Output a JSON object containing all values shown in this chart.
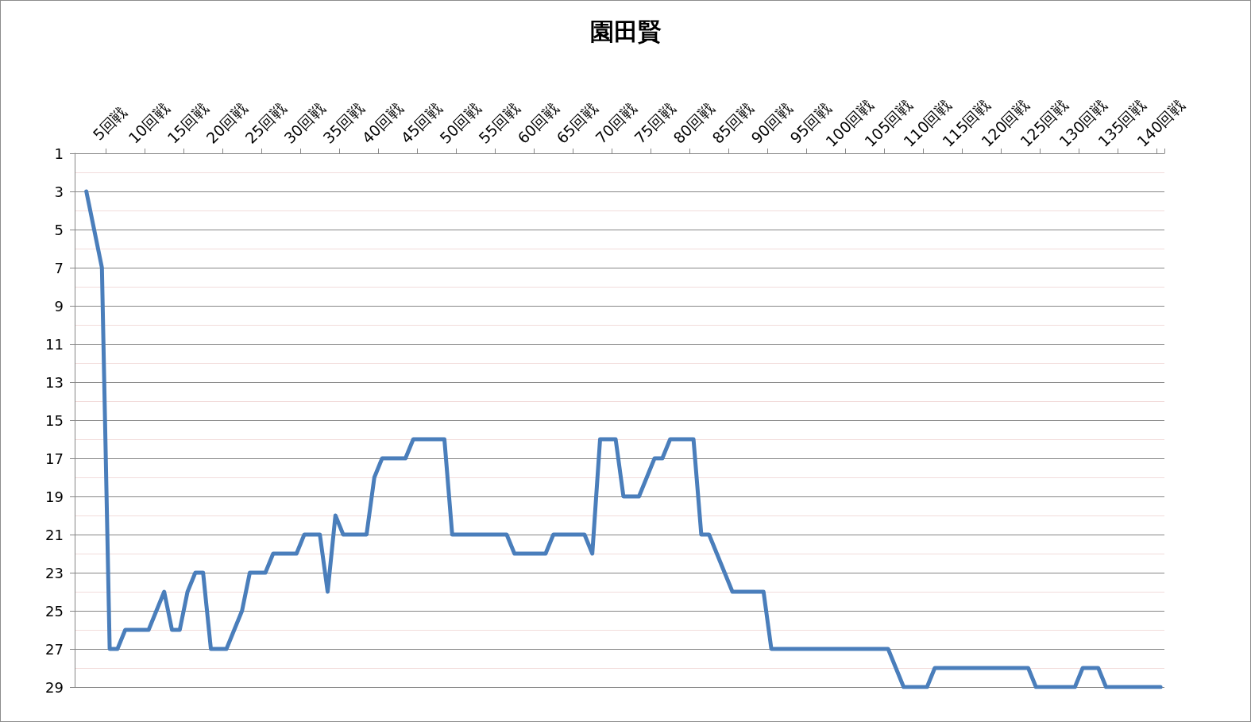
{
  "chart_data": {
    "type": "line",
    "title": "園田賢",
    "categories": [
      null,
      null,
      null,
      null,
      "5回戦",
      null,
      null,
      null,
      null,
      "10回戦",
      null,
      null,
      null,
      null,
      "15回戦",
      null,
      null,
      null,
      null,
      "20回戦",
      null,
      null,
      null,
      null,
      "25回戦",
      null,
      null,
      null,
      null,
      "30回戦",
      null,
      null,
      null,
      null,
      "35回戦",
      null,
      null,
      null,
      null,
      "40回戦",
      null,
      null,
      null,
      null,
      "45回戦",
      null,
      null,
      null,
      null,
      "50回戦",
      null,
      null,
      null,
      null,
      "55回戦",
      null,
      null,
      null,
      null,
      "60回戦",
      null,
      null,
      null,
      null,
      "65回戦",
      null,
      null,
      null,
      null,
      "70回戦",
      null,
      null,
      null,
      null,
      "75回戦",
      null,
      null,
      null,
      null,
      "80回戦",
      null,
      null,
      null,
      null,
      "85回戦",
      null,
      null,
      null,
      null,
      "90回戦",
      null,
      null,
      null,
      null,
      "95回戦",
      null,
      null,
      null,
      null,
      "100回戦",
      null,
      null,
      null,
      null,
      "105回戦",
      null,
      null,
      null,
      null,
      "110回戦",
      null,
      null,
      null,
      null,
      "115回戦",
      null,
      null,
      null,
      null,
      "120回戦",
      null,
      null,
      null,
      null,
      "125回戦",
      null,
      null,
      null,
      null,
      "130回戦",
      null,
      null,
      null,
      null,
      "135回戦",
      null,
      null,
      null,
      null,
      "140回戦"
    ],
    "series": [
      {
        "color": "#4a7ebb",
        "values": [
          null,
          3,
          5,
          7,
          27,
          27,
          26,
          26,
          26,
          26,
          25,
          24,
          26,
          26,
          24,
          23,
          23,
          27,
          27,
          27,
          26,
          25,
          23,
          23,
          23,
          22,
          22,
          22,
          22,
          21,
          21,
          21,
          24,
          20,
          21,
          21,
          21,
          21,
          18,
          17,
          17,
          17,
          17,
          16,
          16,
          16,
          16,
          16,
          21,
          21,
          21,
          21,
          21,
          21,
          21,
          21,
          22,
          22,
          22,
          22,
          22,
          21,
          21,
          21,
          21,
          21,
          22,
          16,
          16,
          16,
          19,
          19,
          19,
          18,
          17,
          17,
          16,
          16,
          16,
          16,
          21,
          21,
          22,
          23,
          24,
          24,
          24,
          24,
          24,
          27,
          27,
          27,
          27,
          27,
          27,
          27,
          27,
          27,
          27,
          27,
          27,
          27,
          27,
          27,
          27,
          28,
          29,
          29,
          29,
          29,
          28,
          28,
          28,
          28,
          28,
          28,
          28,
          28,
          28,
          28,
          28,
          28,
          28,
          29,
          29,
          29,
          29,
          29,
          29,
          28,
          28,
          28,
          29,
          29,
          29,
          29,
          29,
          29,
          29,
          29
        ]
      }
    ],
    "ylim": [
      29,
      1
    ],
    "yticks": [
      1,
      3,
      5,
      7,
      9,
      11,
      13,
      15,
      17,
      19,
      21,
      23,
      25,
      27,
      29
    ],
    "grid": "y",
    "marker": "none",
    "line_style": "solid"
  }
}
